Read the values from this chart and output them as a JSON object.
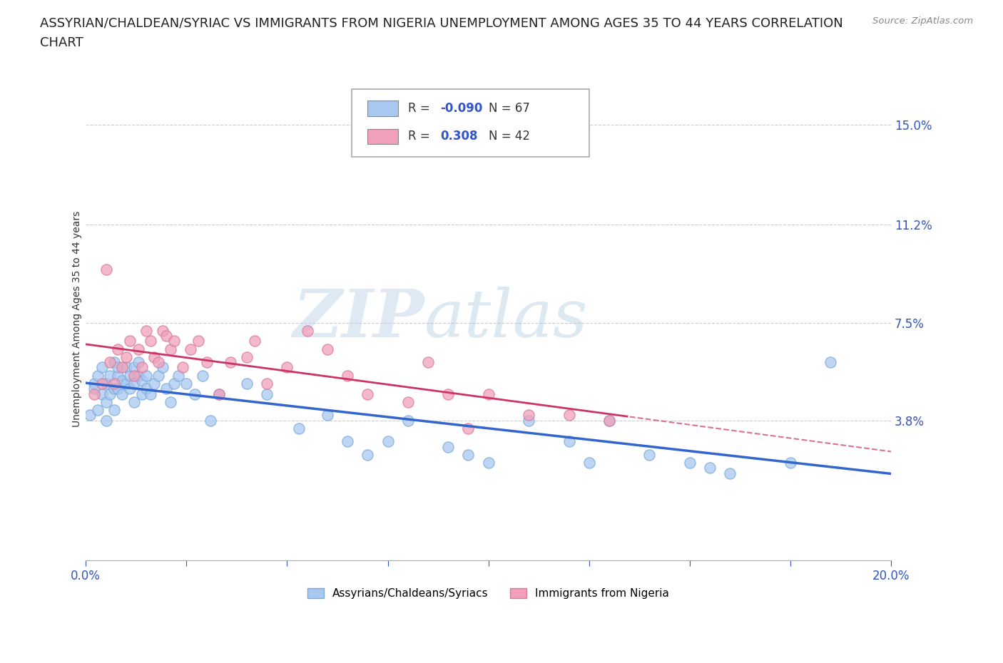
{
  "title_line1": "ASSYRIAN/CHALDEAN/SYRIAC VS IMMIGRANTS FROM NIGERIA UNEMPLOYMENT AMONG AGES 35 TO 44 YEARS CORRELATION",
  "title_line2": "CHART",
  "source_text": "Source: ZipAtlas.com",
  "ylabel": "Unemployment Among Ages 35 to 44 years",
  "xlim": [
    0.0,
    0.2
  ],
  "ylim": [
    -0.015,
    0.168
  ],
  "yticks": [
    0.038,
    0.075,
    0.112,
    0.15
  ],
  "ytick_labels": [
    "3.8%",
    "7.5%",
    "11.2%",
    "15.0%"
  ],
  "xticks": [
    0.0,
    0.025,
    0.05,
    0.075,
    0.1,
    0.125,
    0.15,
    0.175,
    0.2
  ],
  "xtick_labels": [
    "0.0%",
    "",
    "",
    "",
    "",
    "",
    "",
    "",
    "20.0%"
  ],
  "grid_color": "#cccccc",
  "background_color": "#ffffff",
  "series": [
    {
      "label": "Assyrians/Chaldeans/Syriacs",
      "R": -0.09,
      "N": 67,
      "marker_color": "#a8c8f0",
      "marker_edge_color": "#7aaad8",
      "trend_color": "#3366cc",
      "trend_style": "solid",
      "x": [
        0.001,
        0.002,
        0.002,
        0.003,
        0.003,
        0.004,
        0.004,
        0.005,
        0.005,
        0.005,
        0.006,
        0.006,
        0.007,
        0.007,
        0.007,
        0.008,
        0.008,
        0.008,
        0.009,
        0.009,
        0.01,
        0.01,
        0.011,
        0.011,
        0.012,
        0.012,
        0.012,
        0.013,
        0.013,
        0.014,
        0.014,
        0.015,
        0.015,
        0.016,
        0.017,
        0.018,
        0.019,
        0.02,
        0.021,
        0.022,
        0.023,
        0.025,
        0.027,
        0.029,
        0.031,
        0.033,
        0.04,
        0.045,
        0.053,
        0.06,
        0.065,
        0.07,
        0.075,
        0.08,
        0.09,
        0.095,
        0.1,
        0.11,
        0.12,
        0.125,
        0.13,
        0.14,
        0.15,
        0.155,
        0.16,
        0.175,
        0.185
      ],
      "y": [
        0.04,
        0.052,
        0.05,
        0.042,
        0.055,
        0.048,
        0.058,
        0.038,
        0.052,
        0.045,
        0.055,
        0.048,
        0.06,
        0.05,
        0.042,
        0.055,
        0.05,
        0.058,
        0.048,
        0.053,
        0.058,
        0.052,
        0.055,
        0.05,
        0.052,
        0.058,
        0.045,
        0.06,
        0.055,
        0.048,
        0.053,
        0.05,
        0.055,
        0.048,
        0.052,
        0.055,
        0.058,
        0.05,
        0.045,
        0.052,
        0.055,
        0.052,
        0.048,
        0.055,
        0.038,
        0.048,
        0.052,
        0.048,
        0.035,
        0.04,
        0.03,
        0.025,
        0.03,
        0.038,
        0.028,
        0.025,
        0.022,
        0.038,
        0.03,
        0.022,
        0.038,
        0.025,
        0.022,
        0.02,
        0.018,
        0.022,
        0.06
      ]
    },
    {
      "label": "Immigrants from Nigeria",
      "R": 0.308,
      "N": 42,
      "marker_color": "#f0a0b8",
      "marker_edge_color": "#d878a0",
      "trend_color": "#cc3366",
      "trend_style": "solid_then_dashed",
      "x": [
        0.002,
        0.004,
        0.005,
        0.006,
        0.007,
        0.008,
        0.009,
        0.01,
        0.011,
        0.012,
        0.013,
        0.014,
        0.015,
        0.016,
        0.017,
        0.018,
        0.019,
        0.02,
        0.021,
        0.022,
        0.024,
        0.026,
        0.028,
        0.03,
        0.033,
        0.036,
        0.04,
        0.042,
        0.045,
        0.05,
        0.055,
        0.06,
        0.065,
        0.07,
        0.08,
        0.085,
        0.09,
        0.095,
        0.1,
        0.11,
        0.12,
        0.13
      ],
      "y": [
        0.048,
        0.052,
        0.095,
        0.06,
        0.052,
        0.065,
        0.058,
        0.062,
        0.068,
        0.055,
        0.065,
        0.058,
        0.072,
        0.068,
        0.062,
        0.06,
        0.072,
        0.07,
        0.065,
        0.068,
        0.058,
        0.065,
        0.068,
        0.06,
        0.048,
        0.06,
        0.062,
        0.068,
        0.052,
        0.058,
        0.072,
        0.065,
        0.055,
        0.048,
        0.045,
        0.06,
        0.048,
        0.035,
        0.048,
        0.04,
        0.04,
        0.038
      ]
    }
  ],
  "legend": {
    "R_values": [
      -0.09,
      0.308
    ],
    "N_values": [
      67,
      42
    ],
    "colors": [
      "#a8c8f0",
      "#f0a0b8"
    ],
    "labels": [
      "Assyrians/Chaldeans/Syriacs",
      "Immigrants from Nigeria"
    ]
  },
  "watermark_zip": "ZIP",
  "watermark_atlas": "atlas",
  "title_fontsize": 13,
  "axis_label_fontsize": 10,
  "tick_fontsize": 12
}
